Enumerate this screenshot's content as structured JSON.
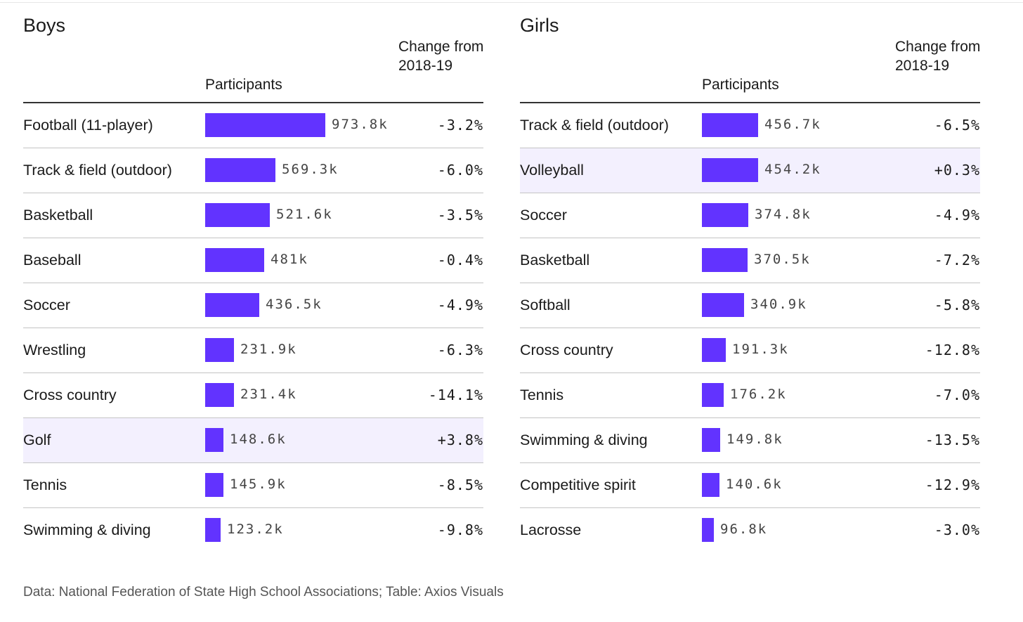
{
  "chart_data": [
    {
      "type": "bar",
      "title": "Boys",
      "columns": {
        "participants": "Participants",
        "change": "Change from 2018-19"
      },
      "rows": [
        {
          "sport": "Football (11-player)",
          "participants": 973.8,
          "participants_label": "973.8k",
          "change": "-3.2%",
          "highlight": false
        },
        {
          "sport": "Track & field (outdoor)",
          "participants": 569.3,
          "participants_label": "569.3k",
          "change": "-6.0%",
          "highlight": false
        },
        {
          "sport": "Basketball",
          "participants": 521.6,
          "participants_label": "521.6k",
          "change": "-3.5%",
          "highlight": false
        },
        {
          "sport": "Baseball",
          "participants": 481,
          "participants_label": "481k",
          "change": "-0.4%",
          "highlight": false
        },
        {
          "sport": "Soccer",
          "participants": 436.5,
          "participants_label": "436.5k",
          "change": "-4.9%",
          "highlight": false
        },
        {
          "sport": "Wrestling",
          "participants": 231.9,
          "participants_label": "231.9k",
          "change": "-6.3%",
          "highlight": false
        },
        {
          "sport": "Cross country",
          "participants": 231.4,
          "participants_label": "231.4k",
          "change": "-14.1%",
          "highlight": false
        },
        {
          "sport": "Golf",
          "participants": 148.6,
          "participants_label": "148.6k",
          "change": "+3.8%",
          "highlight": true
        },
        {
          "sport": "Tennis",
          "participants": 145.9,
          "participants_label": "145.9k",
          "change": "-8.5%",
          "highlight": false
        },
        {
          "sport": "Swimming & diving",
          "participants": 123.2,
          "participants_label": "123.2k",
          "change": "-9.8%",
          "highlight": false
        }
      ]
    },
    {
      "type": "bar",
      "title": "Girls",
      "columns": {
        "participants": "Participants",
        "change": "Change from 2018-19"
      },
      "rows": [
        {
          "sport": "Track & field (outdoor)",
          "participants": 456.7,
          "participants_label": "456.7k",
          "change": "-6.5%",
          "highlight": false
        },
        {
          "sport": "Volleyball",
          "participants": 454.2,
          "participants_label": "454.2k",
          "change": "+0.3%",
          "highlight": true
        },
        {
          "sport": "Soccer",
          "participants": 374.8,
          "participants_label": "374.8k",
          "change": "-4.9%",
          "highlight": false
        },
        {
          "sport": "Basketball",
          "participants": 370.5,
          "participants_label": "370.5k",
          "change": "-7.2%",
          "highlight": false
        },
        {
          "sport": "Softball",
          "participants": 340.9,
          "participants_label": "340.9k",
          "change": "-5.8%",
          "highlight": false
        },
        {
          "sport": "Cross country",
          "participants": 191.3,
          "participants_label": "191.3k",
          "change": "-12.8%",
          "highlight": false
        },
        {
          "sport": "Tennis",
          "participants": 176.2,
          "participants_label": "176.2k",
          "change": "-7.0%",
          "highlight": false
        },
        {
          "sport": "Swimming & diving",
          "participants": 149.8,
          "participants_label": "149.8k",
          "change": "-13.5%",
          "highlight": false
        },
        {
          "sport": "Competitive spirit",
          "participants": 140.6,
          "participants_label": "140.6k",
          "change": "-12.9%",
          "highlight": false
        },
        {
          "sport": "Lacrosse",
          "participants": 96.8,
          "participants_label": "96.8k",
          "change": "-3.0%",
          "highlight": false
        }
      ]
    }
  ],
  "colors": {
    "bar": "#6233ff",
    "highlight_row": "#f3f0fe"
  },
  "footer": "Data: National Federation of State High School Associations; Table: Axios Visuals"
}
